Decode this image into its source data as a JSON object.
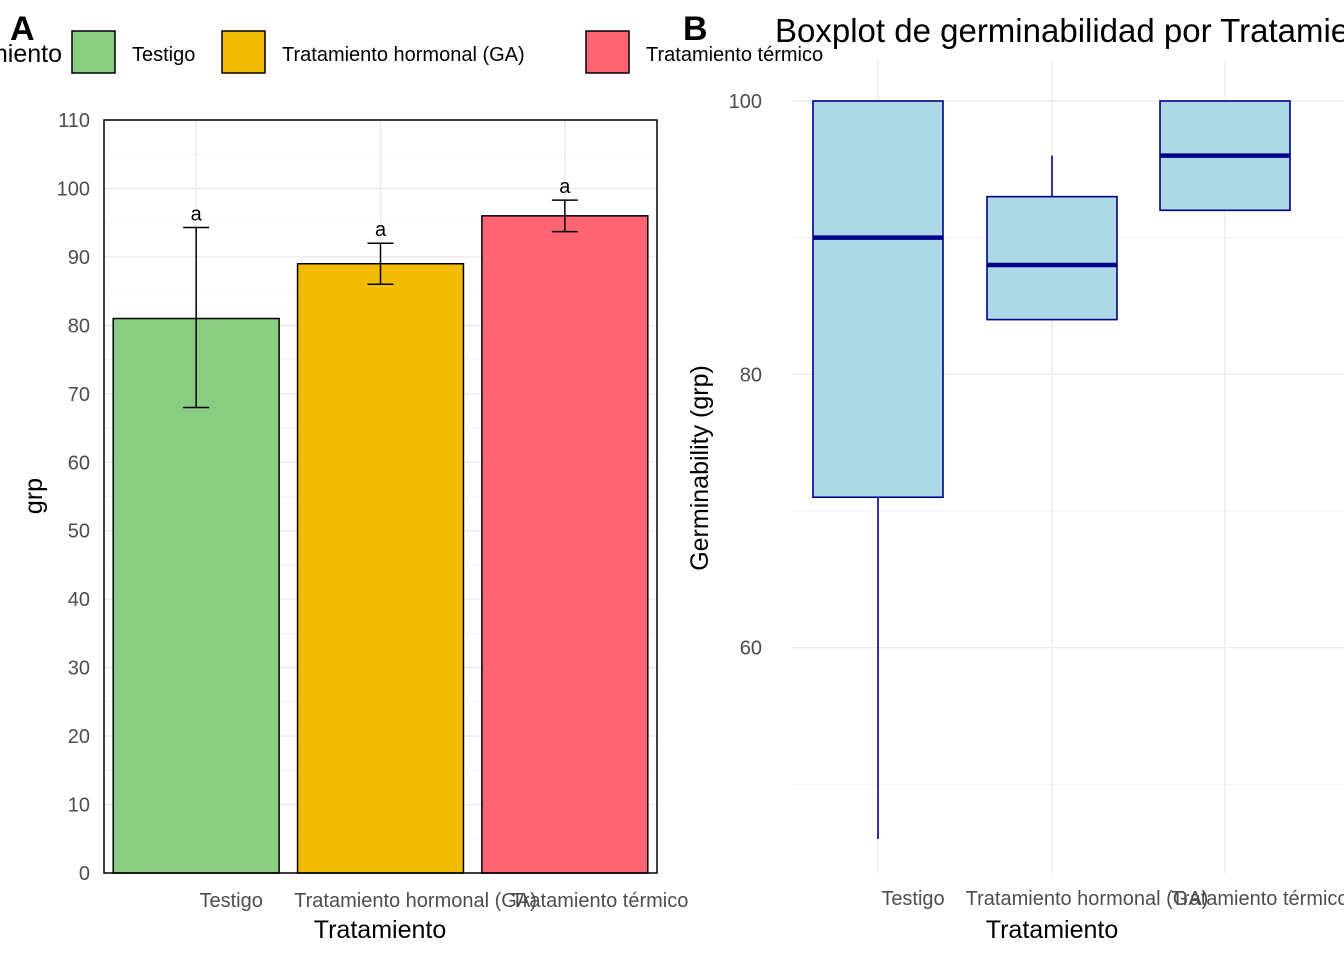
{
  "legend": {
    "title": "Tratamiento",
    "items": [
      {
        "label": "Testigo",
        "color": "#88CD80"
      },
      {
        "label": "Tratamiento hormonal (GA)",
        "color": "#F0BB00"
      },
      {
        "label": "Tratamiento térmico",
        "color": "#FF6473"
      }
    ]
  },
  "chart_data": [
    {
      "type": "bar",
      "panel_tag": "A",
      "title": "",
      "categories": [
        "Testigo",
        "Tratamiento hormonal (GA)",
        "Tratamiento térmico"
      ],
      "values": [
        81,
        89,
        96
      ],
      "error_bars": [
        {
          "low": 68,
          "high": 94.3
        },
        {
          "low": 86,
          "high": 92
        },
        {
          "low": 93.7,
          "high": 98.3
        }
      ],
      "significance_labels": [
        "a",
        "a",
        "a"
      ],
      "colors": [
        "#88CD80",
        "#F0BB00",
        "#FF6473"
      ],
      "xlabel": "Tratamiento",
      "ylabel": "grp",
      "ylim": [
        0,
        110
      ],
      "yticks": [
        0,
        10,
        20,
        30,
        40,
        50,
        60,
        70,
        80,
        90,
        100,
        110
      ],
      "grid": true
    },
    {
      "type": "box",
      "panel_tag": "B",
      "title": "Boxplot de germinabilidad por Tratamiento",
      "categories": [
        "Testigo",
        "Tratamiento hormonal (GA)",
        "Tratamiento térmico"
      ],
      "boxes": [
        {
          "min": 46,
          "q1": 71,
          "median": 90,
          "q3": 100,
          "max": 100
        },
        {
          "min": 84,
          "q1": 84,
          "median": 88,
          "q3": 93,
          "max": 96
        },
        {
          "min": 92,
          "q1": 92,
          "median": 96,
          "q3": 100,
          "max": 100
        }
      ],
      "box_fill": "#ADD8E6",
      "box_stroke": "#00008B",
      "xlabel": "Tratamiento",
      "ylabel": "Germinability (grp)",
      "ylim": [
        43.5,
        103
      ],
      "yticks": [
        60,
        80,
        100
      ],
      "grid": true
    }
  ]
}
